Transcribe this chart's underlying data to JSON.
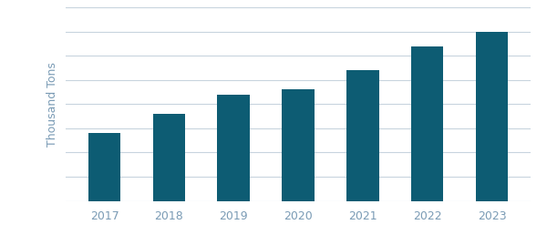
{
  "years": [
    "2017",
    "2018",
    "2019",
    "2020",
    "2021",
    "2022",
    "2023"
  ],
  "values": [
    28,
    36,
    44,
    46,
    54,
    64,
    70
  ],
  "bar_color": "#0d5c73",
  "ylabel": "Thousand Tons",
  "ylabel_color": "#7a9bb5",
  "tick_color": "#7a9bb5",
  "background_color": "#ffffff",
  "grid_color": "#c8d4de",
  "ylim": [
    0,
    80
  ],
  "bar_width": 0.5
}
